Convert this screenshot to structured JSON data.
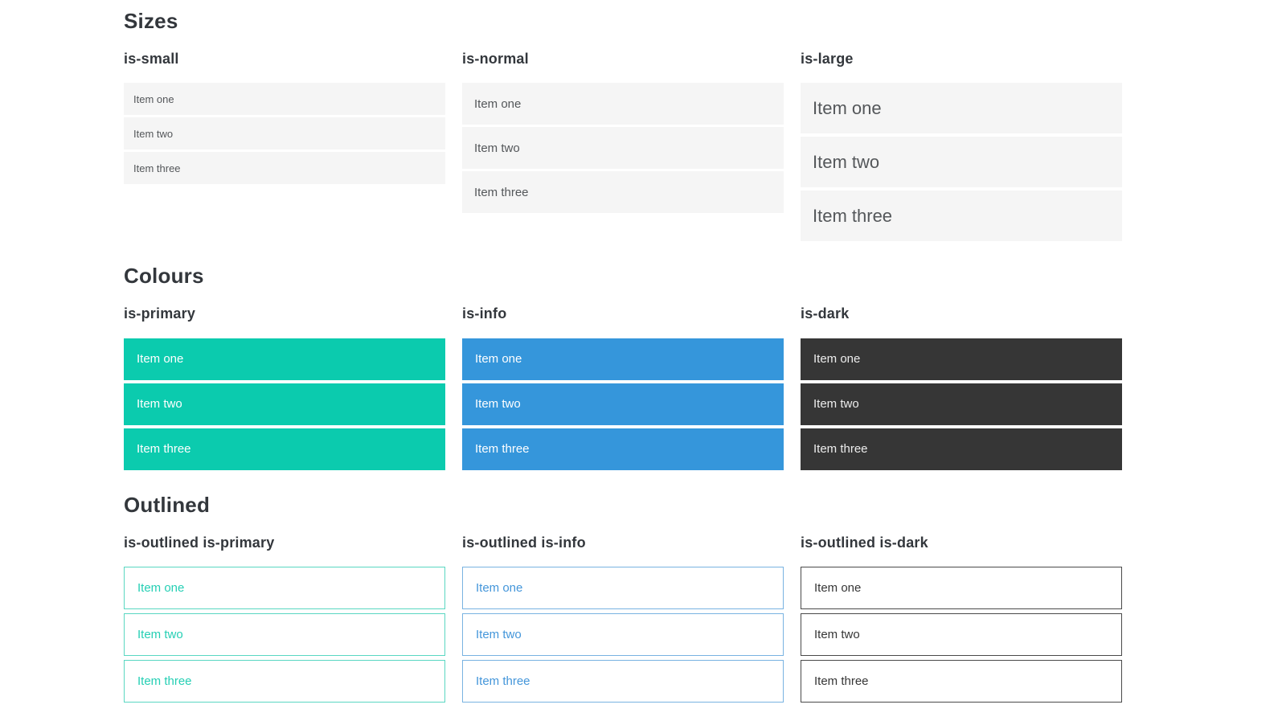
{
  "colors": {
    "primary": "#0bcbae",
    "info": "#3596db",
    "dark": "#363636",
    "item_background": "#f5f5f5",
    "item_text": "#54575a",
    "heading_text": "#33373c",
    "on_color_text": "#ffffff",
    "on_dark_text": "#ededed",
    "outlined_primary_text": "#25cfb4",
    "outlined_primary_border": "#5ad7c2",
    "outlined_info_text": "#4496da",
    "outlined_info_border": "#79b3e1",
    "outlined_dark_text": "#363636",
    "outlined_dark_border": "#4a4a4a"
  },
  "sections": [
    {
      "title": "Sizes",
      "groups": [
        {
          "label": "is-small",
          "items": [
            "Item one",
            "Item two",
            "Item three"
          ]
        },
        {
          "label": "is-normal",
          "items": [
            "Item one",
            "Item two",
            "Item three"
          ]
        },
        {
          "label": "is-large",
          "items": [
            "Item one",
            "Item two",
            "Item three"
          ]
        }
      ]
    },
    {
      "title": "Colours",
      "groups": [
        {
          "label": "is-primary",
          "items": [
            "Item one",
            "Item two",
            "Item three"
          ]
        },
        {
          "label": "is-info",
          "items": [
            "Item one",
            "Item two",
            "Item three"
          ]
        },
        {
          "label": "is-dark",
          "items": [
            "Item one",
            "Item two",
            "Item three"
          ]
        }
      ]
    },
    {
      "title": "Outlined",
      "groups": [
        {
          "label": "is-outlined is-primary",
          "items": [
            "Item one",
            "Item two",
            "Item three"
          ]
        },
        {
          "label": "is-outlined is-info",
          "items": [
            "Item one",
            "Item two",
            "Item three"
          ]
        },
        {
          "label": "is-outlined is-dark",
          "items": [
            "Item one",
            "Item two",
            "Item three"
          ]
        }
      ]
    }
  ]
}
